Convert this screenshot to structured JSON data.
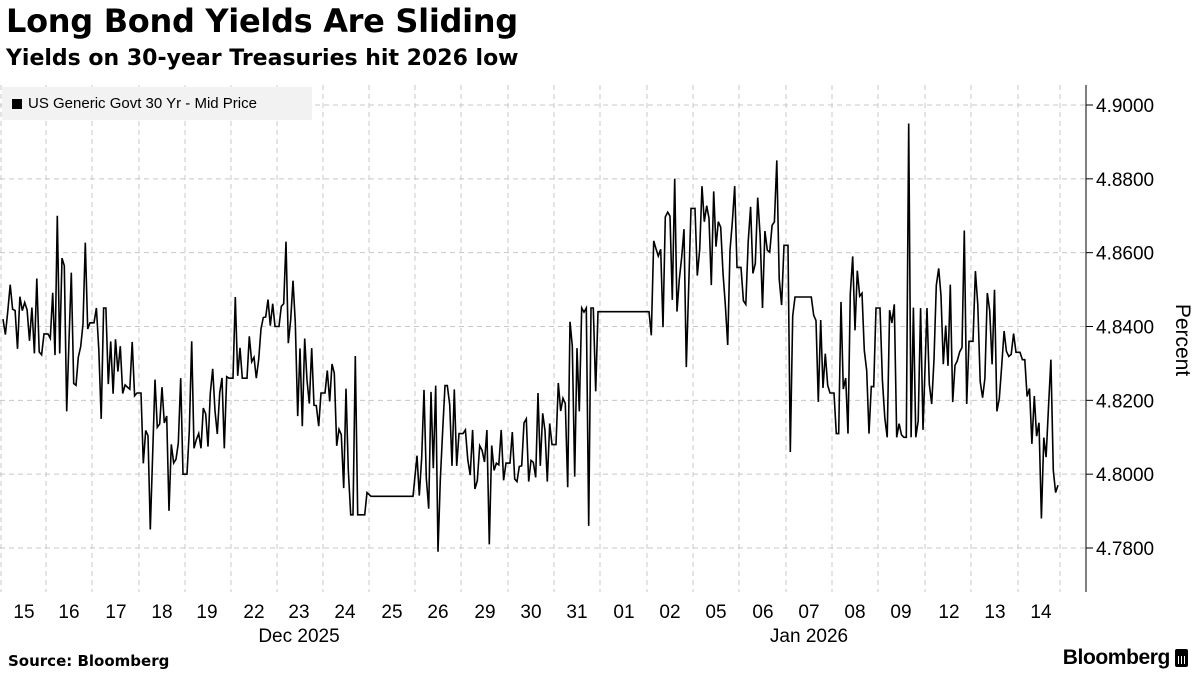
{
  "title": "Long Bond Yields Are Sliding",
  "subtitle": "Yields on 30-year Treasuries hit 2026 low",
  "source": "Source: Bloomberg",
  "brand": "Bloomberg",
  "chart_data": {
    "type": "line",
    "title": "Long Bond Yields Are Sliding",
    "subtitle": "Yields on 30-year Treasuries hit 2026 low",
    "ylabel": "Percent",
    "ylim": [
      4.77,
      4.905
    ],
    "yticks": [
      "4.7800",
      "4.8000",
      "4.8200",
      "4.8400",
      "4.8600",
      "4.8800",
      "4.9000"
    ],
    "x_day_labels": [
      "15",
      "16",
      "17",
      "18",
      "19",
      "22",
      "23",
      "24",
      "25",
      "26",
      "29",
      "30",
      "31",
      "01",
      "02",
      "05",
      "06",
      "07",
      "08",
      "09",
      "12",
      "13",
      "14"
    ],
    "x_month_labels": [
      {
        "label": "Dec 2025",
        "under_day": "23"
      },
      {
        "label": "Jan 2026",
        "under_day": "07"
      }
    ],
    "legend": "top-left",
    "grid": true,
    "series": [
      {
        "name": "US Generic Govt 30 Yr - Mid Price",
        "color": "#000000",
        "values": [
          {
            "day": "15",
            "open": 4.842,
            "high": 4.853,
            "low": 4.83,
            "close": 4.838
          },
          {
            "day": "16",
            "open": 4.838,
            "high": 4.87,
            "low": 4.817,
            "close": 4.841
          },
          {
            "day": "17",
            "open": 4.841,
            "high": 4.845,
            "low": 4.815,
            "close": 4.822
          },
          {
            "day": "18",
            "open": 4.822,
            "high": 4.826,
            "low": 4.785,
            "close": 4.8
          },
          {
            "day": "19",
            "open": 4.8,
            "high": 4.836,
            "low": 4.807,
            "close": 4.826
          },
          {
            "day": "22",
            "open": 4.826,
            "high": 4.848,
            "low": 4.826,
            "close": 4.84
          },
          {
            "day": "23",
            "open": 4.84,
            "high": 4.863,
            "low": 4.813,
            "close": 4.822
          },
          {
            "day": "24",
            "open": 4.822,
            "high": 4.832,
            "low": 4.789,
            "close": 4.795
          },
          {
            "day": "25",
            "open": 4.794,
            "high": 4.794,
            "low": 4.794,
            "close": 4.794
          },
          {
            "day": "26",
            "open": 4.805,
            "high": 4.824,
            "low": 4.779,
            "close": 4.811
          },
          {
            "day": "29",
            "open": 4.811,
            "high": 4.812,
            "low": 4.781,
            "close": 4.803
          },
          {
            "day": "30",
            "open": 4.803,
            "high": 4.822,
            "low": 4.798,
            "close": 4.808
          },
          {
            "day": "31",
            "open": 4.808,
            "high": 4.845,
            "low": 4.786,
            "close": 4.844
          },
          {
            "day": "01",
            "open": 4.844,
            "high": 4.844,
            "low": 4.844,
            "close": 4.844
          },
          {
            "day": "02",
            "open": 4.844,
            "high": 4.88,
            "low": 4.829,
            "close": 4.872
          },
          {
            "day": "05",
            "open": 4.872,
            "high": 4.878,
            "low": 4.835,
            "close": 4.856
          },
          {
            "day": "06",
            "open": 4.856,
            "high": 4.885,
            "low": 4.845,
            "close": 4.862
          },
          {
            "day": "07",
            "open": 4.862,
            "high": 4.848,
            "low": 4.806,
            "close": 4.822
          },
          {
            "day": "08",
            "open": 4.822,
            "high": 4.859,
            "low": 4.811,
            "close": 4.845
          },
          {
            "day": "09",
            "open": 4.845,
            "high": 4.895,
            "low": 4.81,
            "close": 4.812
          },
          {
            "day": "12",
            "open": 4.845,
            "high": 4.866,
            "low": 4.819,
            "close": 4.836
          },
          {
            "day": "13",
            "open": 4.836,
            "high": 4.855,
            "low": 4.817,
            "close": 4.833
          },
          {
            "day": "14",
            "open": 4.833,
            "high": 4.831,
            "low": 4.788,
            "close": 4.797
          }
        ]
      }
    ]
  }
}
